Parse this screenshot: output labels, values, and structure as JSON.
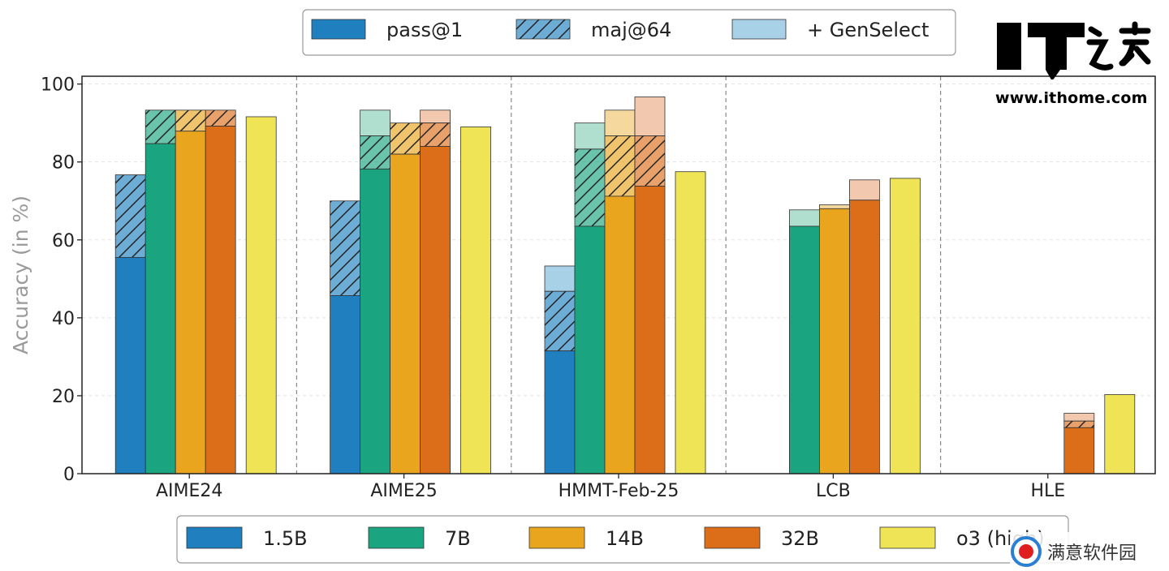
{
  "chart_data": {
    "type": "bar",
    "title": "",
    "xlabel": "",
    "ylabel": "Accuracy (in %)",
    "ylim": [
      0,
      102
    ],
    "yticks": [
      0,
      20,
      40,
      60,
      80,
      100
    ],
    "grid": "horizontal-dashed",
    "categories": [
      "AIME24",
      "AIME25",
      "HMMT-Feb-25",
      "LCB",
      "HLE"
    ],
    "metric_legend": {
      "placement": "top-center",
      "entries": [
        {
          "label": "pass@1",
          "style": "solid"
        },
        {
          "label": "maj@64",
          "style": "hatched"
        },
        {
          "label": "+ GenSelect",
          "style": "light"
        }
      ]
    },
    "model_legend": {
      "placement": "bottom-center",
      "entries": [
        "1.5B",
        "7B",
        "14B",
        "32B",
        "o3 (high)"
      ]
    },
    "series": [
      {
        "name": "1.5B",
        "color": "#1f7fbf",
        "light_color": "#a8d0e6",
        "pass1": [
          55.5,
          45.7,
          31.5,
          null,
          null
        ],
        "maj64": [
          76.7,
          70.0,
          46.8,
          null,
          null
        ],
        "genselect": [
          null,
          null,
          53.3,
          null,
          null
        ]
      },
      {
        "name": "7B",
        "color": "#1aa47f",
        "light_color": "#b0dfd0",
        "pass1": [
          84.7,
          78.2,
          63.5,
          63.5,
          null
        ],
        "maj64": [
          93.3,
          86.7,
          83.3,
          null,
          null
        ],
        "genselect": [
          null,
          93.3,
          90.0,
          67.7,
          null
        ]
      },
      {
        "name": "14B",
        "color": "#e8a51d",
        "light_color": "#f5d89e",
        "pass1": [
          87.9,
          82.0,
          71.2,
          68.0,
          null
        ],
        "maj64": [
          93.3,
          90.0,
          86.7,
          null,
          null
        ],
        "genselect": [
          null,
          null,
          93.3,
          69.0,
          null
        ]
      },
      {
        "name": "32B",
        "color": "#dc6e1a",
        "light_color": "#f2c9ae",
        "pass1": [
          89.2,
          84.0,
          73.8,
          70.2,
          11.8
        ],
        "maj64": [
          93.3,
          90.0,
          86.7,
          null,
          13.5
        ],
        "genselect": [
          null,
          93.3,
          96.7,
          75.4,
          15.5
        ]
      },
      {
        "name": "o3 (high)",
        "color": "#efe455",
        "light_color": "#efe455",
        "pass1": [
          91.6,
          89.0,
          77.5,
          75.8,
          20.3
        ],
        "maj64": [
          null,
          null,
          null,
          null,
          null
        ],
        "genselect": [
          null,
          null,
          null,
          null,
          null
        ]
      }
    ]
  },
  "watermark": {
    "logo_text": "IT之家",
    "url": "www.ithome.com",
    "secondary": "满意软件园"
  }
}
